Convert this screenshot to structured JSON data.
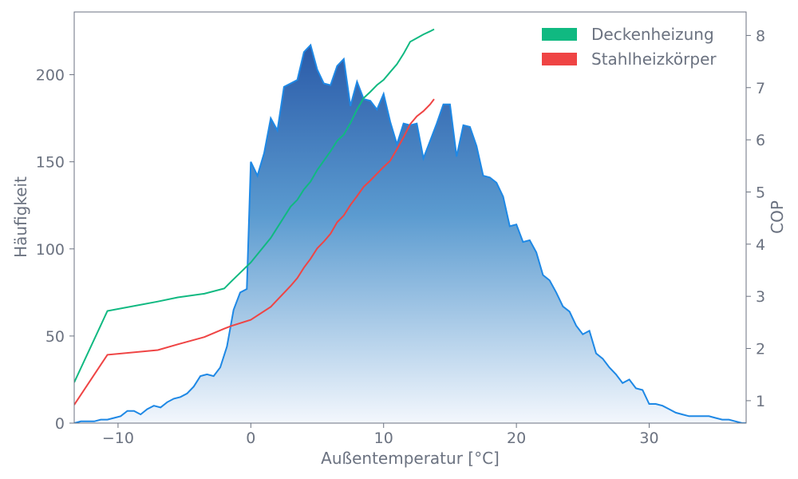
{
  "chart_data": {
    "type": "area",
    "xlabel": "Außentemperatur [°C]",
    "ylabel_left": "Häufigkeit",
    "ylabel_right": "COP",
    "xlim": [
      -13.3,
      37.3
    ],
    "ylim_left": [
      0,
      236
    ],
    "ylim_right": [
      0.57,
      8.45
    ],
    "x_ticks": [
      -10,
      0,
      10,
      20,
      30
    ],
    "x_tick_labels": [
      "−10",
      "0",
      "10",
      "20",
      "30"
    ],
    "y_left_ticks": [
      0,
      50,
      100,
      150,
      200
    ],
    "y_left_tick_labels": [
      "0",
      "50",
      "100",
      "150",
      "200"
    ],
    "y_right_ticks": [
      1,
      2,
      3,
      4,
      5,
      6,
      7,
      8
    ],
    "y_right_tick_labels": [
      "1",
      "2",
      "3",
      "4",
      "5",
      "6",
      "7",
      "8"
    ],
    "legend_position": "top-right",
    "grid": false,
    "colors": {
      "area_top": "#2a5aa8",
      "area_bottom": "#f3f7fd",
      "area_line": "#1e88e5",
      "deckenheizung": "#10b981",
      "stahlheizkoerper": "#ef4444",
      "axis": "#6b7280"
    },
    "histogram": {
      "x": [
        -13.3,
        -12.8,
        -12.3,
        -11.8,
        -11.3,
        -10.8,
        -10.3,
        -9.8,
        -9.3,
        -8.8,
        -8.3,
        -7.8,
        -7.3,
        -6.8,
        -6.3,
        -5.8,
        -5.3,
        -4.8,
        -4.3,
        -3.8,
        -3.3,
        -2.8,
        -2.3,
        -1.8,
        -1.3,
        -0.8,
        -0.3,
        0.0,
        0.5,
        1.0,
        1.5,
        2.0,
        2.5,
        3.0,
        3.5,
        4.0,
        4.5,
        5.0,
        5.5,
        6.0,
        6.5,
        7.0,
        7.5,
        8.0,
        8.5,
        9.0,
        9.5,
        10.0,
        10.5,
        11.0,
        11.5,
        12.0,
        12.5,
        13.0,
        13.5,
        14.0,
        14.5,
        15.0,
        15.5,
        16.0,
        16.5,
        17.0,
        17.5,
        18.0,
        18.5,
        19.0,
        19.5,
        20.0,
        20.5,
        21.0,
        21.5,
        22.0,
        22.5,
        23.0,
        23.5,
        24.0,
        24.5,
        25.0,
        25.5,
        26.0,
        26.5,
        27.0,
        27.5,
        28.0,
        28.5,
        29.0,
        29.5,
        30.0,
        30.5,
        31.0,
        31.5,
        32.0,
        32.5,
        33.0,
        33.5,
        34.0,
        34.5,
        35.0,
        35.5,
        36.0,
        36.5,
        37.0,
        37.3
      ],
      "y": [
        0,
        1,
        1,
        1,
        2,
        2,
        3,
        4,
        7,
        7,
        5,
        8,
        10,
        9,
        12,
        14,
        15,
        17,
        21,
        27,
        28,
        27,
        32,
        44,
        65,
        75,
        77,
        150,
        142,
        155,
        175,
        168,
        193,
        195,
        197,
        213,
        217,
        203,
        195,
        194,
        205,
        209,
        182,
        196,
        186,
        185,
        180,
        189,
        173,
        160,
        172,
        171,
        172,
        152,
        162,
        172,
        183,
        183,
        153,
        171,
        170,
        159,
        142,
        141,
        138,
        130,
        113,
        114,
        104,
        105,
        98,
        85,
        82,
        75,
        67,
        64,
        56,
        51,
        53,
        40,
        37,
        32,
        28,
        23,
        25,
        20,
        19,
        11,
        11,
        10,
        8,
        6,
        5,
        4,
        4,
        4,
        4,
        3,
        2,
        2,
        1,
        0,
        0
      ]
    },
    "series": [
      {
        "name": "Deckenheizung",
        "x": [
          -13.3,
          -10.8,
          -7,
          -5.5,
          -3.5,
          -2,
          -1.5,
          0,
          1.5,
          3,
          3.5,
          4,
          4.5,
          5,
          5.5,
          6,
          6.5,
          7,
          7.5,
          8,
          8.5,
          9,
          9.5,
          10,
          10.5,
          11,
          11.5,
          12,
          12.5,
          13,
          13.5,
          13.8
        ],
        "y": [
          1.35,
          2.72,
          2.9,
          2.98,
          3.05,
          3.15,
          3.28,
          3.65,
          4.12,
          4.72,
          4.85,
          5.05,
          5.2,
          5.42,
          5.6,
          5.78,
          5.98,
          6.1,
          6.32,
          6.58,
          6.8,
          6.92,
          7.05,
          7.15,
          7.3,
          7.45,
          7.65,
          7.88,
          7.95,
          8.02,
          8.08,
          8.12
        ]
      },
      {
        "name": "Stahlheizkörper",
        "x": [
          -13.3,
          -10.8,
          -7,
          -5.5,
          -3.5,
          -2,
          -1.5,
          0,
          1.5,
          3,
          3.5,
          4,
          4.5,
          5,
          5.5,
          6,
          6.5,
          7,
          7.5,
          8,
          8.5,
          9,
          9.5,
          10,
          10.5,
          11,
          11.5,
          12,
          12.5,
          13,
          13.5,
          13.8
        ],
        "y": [
          0.92,
          1.88,
          1.97,
          2.08,
          2.22,
          2.38,
          2.43,
          2.55,
          2.8,
          3.2,
          3.35,
          3.55,
          3.72,
          3.92,
          4.05,
          4.2,
          4.42,
          4.55,
          4.75,
          4.92,
          5.1,
          5.22,
          5.35,
          5.48,
          5.6,
          5.82,
          6.05,
          6.3,
          6.45,
          6.55,
          6.68,
          6.78
        ]
      }
    ]
  }
}
